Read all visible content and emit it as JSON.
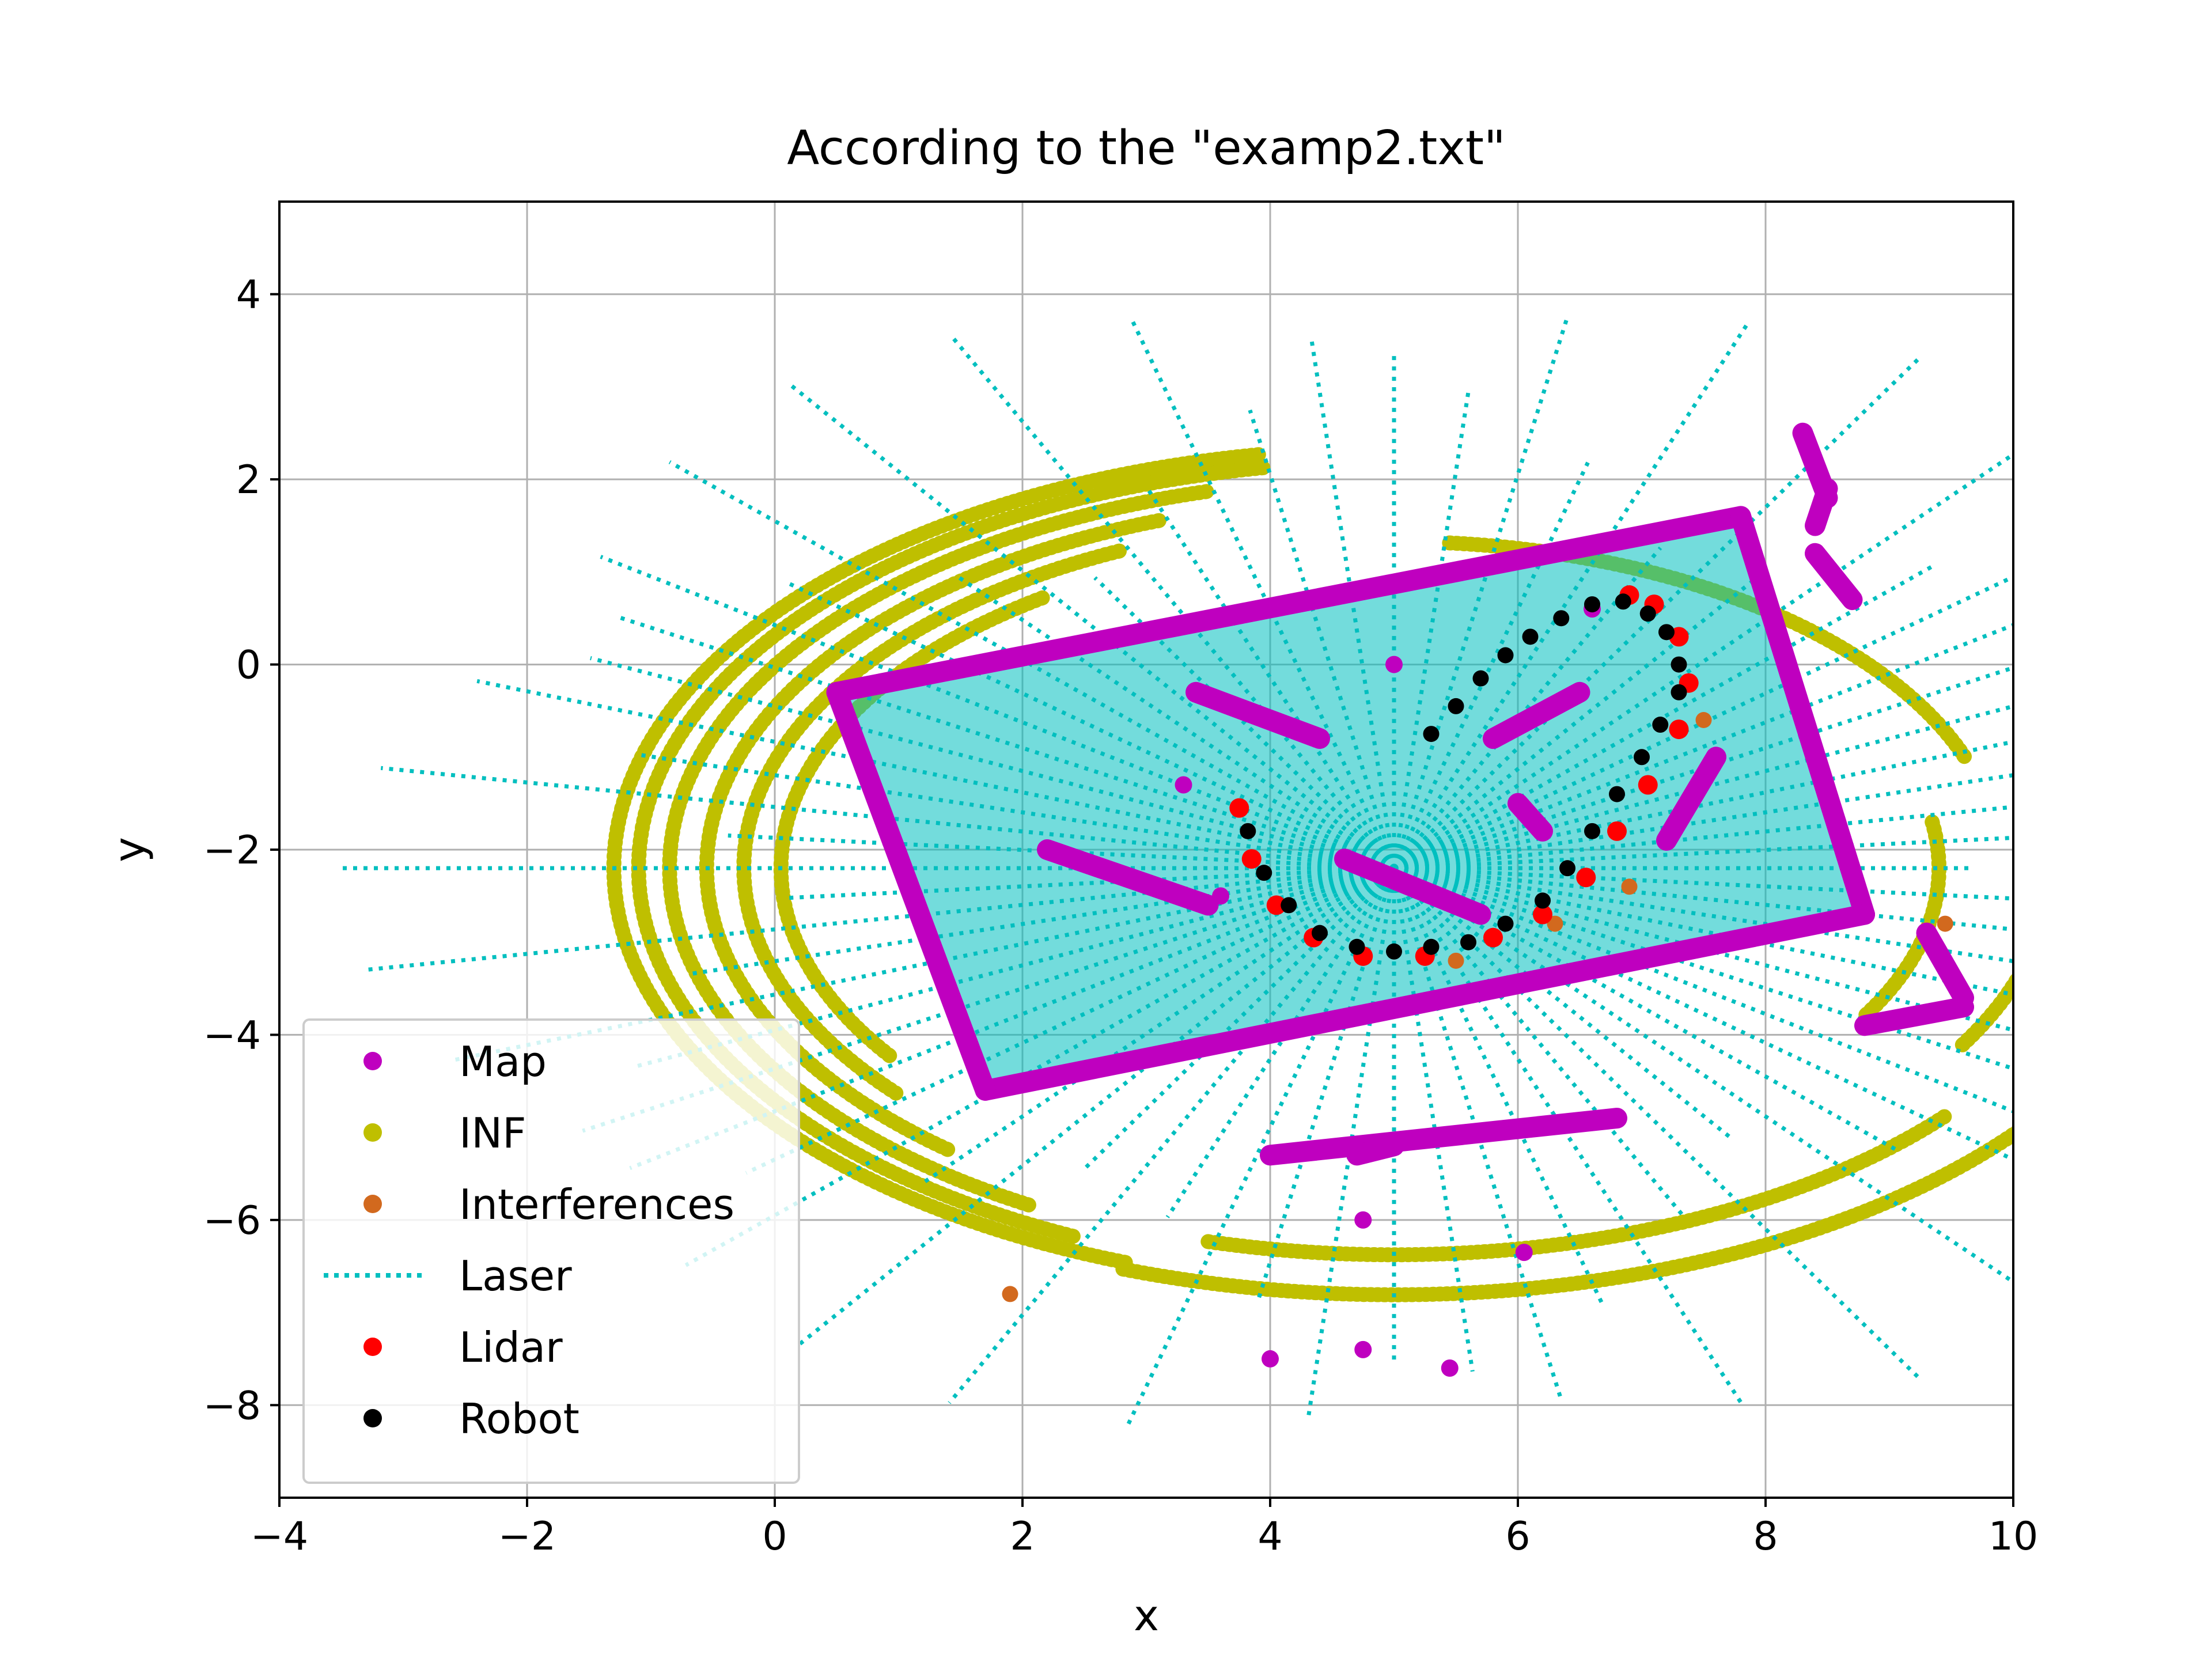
{
  "chart_data": {
    "type": "scatter",
    "title": "According to the \"examp2.txt\"",
    "xlabel": "x",
    "ylabel": "y",
    "xlim": [
      -4,
      10
    ],
    "ylim": [
      -9,
      5
    ],
    "xticks": [
      -4,
      -2,
      0,
      2,
      4,
      6,
      8,
      10
    ],
    "yticks": [
      4,
      2,
      0,
      -2,
      -4,
      -6,
      -8
    ],
    "xtick_labels": [
      "−4",
      "−2",
      "0",
      "2",
      "4",
      "6",
      "8",
      "10"
    ],
    "ytick_labels": [
      "4",
      "2",
      "0",
      "−2",
      "−4",
      "−6",
      "−8"
    ],
    "grid": true,
    "legend_position": "lower-left",
    "legend": [
      {
        "label": "Map",
        "color": "#bf00bf",
        "marker": "dot"
      },
      {
        "label": "INF",
        "color": "#bfbf00",
        "marker": "dot"
      },
      {
        "label": "Interferences",
        "color": "#d2691e",
        "marker": "dot"
      },
      {
        "label": "Laser",
        "color": "#00bfbf",
        "marker": "dotted-line"
      },
      {
        "label": "Lidar",
        "color": "#ff0000",
        "marker": "dot"
      },
      {
        "label": "Robot",
        "color": "#000000",
        "marker": "dot"
      }
    ],
    "series": [
      {
        "name": "Map",
        "color": "#bf00bf",
        "segments": [
          [
            [
              0.5,
              -0.3
            ],
            [
              7.8,
              1.6
            ]
          ],
          [
            [
              7.8,
              1.6
            ],
            [
              8.8,
              -2.7
            ]
          ],
          [
            [
              8.8,
              -2.7
            ],
            [
              1.7,
              -4.6
            ]
          ],
          [
            [
              1.7,
              -4.6
            ],
            [
              0.5,
              -0.3
            ]
          ],
          [
            [
              3.4,
              -0.3
            ],
            [
              4.4,
              -0.8
            ]
          ],
          [
            [
              2.2,
              -2.0
            ],
            [
              3.5,
              -2.6
            ]
          ],
          [
            [
              4.6,
              -2.1
            ],
            [
              5.7,
              -2.7
            ]
          ],
          [
            [
              5.8,
              -0.8
            ],
            [
              6.5,
              -0.3
            ]
          ],
          [
            [
              6.0,
              -1.5
            ],
            [
              6.2,
              -1.8
            ]
          ],
          [
            [
              7.2,
              -1.9
            ],
            [
              7.6,
              -1.0
            ]
          ],
          [
            [
              4.0,
              -5.3
            ],
            [
              6.8,
              -4.9
            ]
          ],
          [
            [
              4.7,
              -5.3
            ],
            [
              5.0,
              -5.2
            ]
          ],
          [
            [
              8.3,
              2.5
            ],
            [
              8.5,
              1.8
            ]
          ],
          [
            [
              8.5,
              1.9
            ],
            [
              8.4,
              1.5
            ]
          ],
          [
            [
              8.4,
              1.2
            ],
            [
              8.7,
              0.7
            ]
          ],
          [
            [
              9.3,
              -2.9
            ],
            [
              9.6,
              -3.6
            ]
          ],
          [
            [
              8.8,
              -3.9
            ],
            [
              9.6,
              -3.7
            ]
          ]
        ],
        "points": [
          [
            3.3,
            -1.3
          ],
          [
            3.6,
            -2.5
          ],
          [
            4.75,
            -6.0
          ],
          [
            6.05,
            -6.35
          ],
          [
            4.0,
            -7.5
          ],
          [
            4.75,
            -7.4
          ],
          [
            5.45,
            -7.6
          ],
          [
            6.6,
            0.6
          ],
          [
            5.0,
            0.0
          ]
        ]
      },
      {
        "name": "Robot",
        "color": "#000000",
        "points": [
          [
            5.3,
            -0.75
          ],
          [
            5.5,
            -0.45
          ],
          [
            5.7,
            -0.15
          ],
          [
            5.9,
            0.1
          ],
          [
            6.1,
            0.3
          ],
          [
            6.35,
            0.5
          ],
          [
            6.6,
            0.65
          ],
          [
            6.85,
            0.68
          ],
          [
            7.05,
            0.55
          ],
          [
            7.2,
            0.35
          ],
          [
            7.3,
            0.0
          ],
          [
            7.3,
            -0.3
          ],
          [
            7.15,
            -0.65
          ],
          [
            7.0,
            -1.0
          ],
          [
            6.8,
            -1.4
          ],
          [
            6.6,
            -1.8
          ],
          [
            6.4,
            -2.2
          ],
          [
            6.2,
            -2.55
          ],
          [
            5.9,
            -2.8
          ],
          [
            5.6,
            -3.0
          ],
          [
            5.3,
            -3.05
          ],
          [
            5.0,
            -3.1
          ],
          [
            4.7,
            -3.05
          ],
          [
            4.4,
            -2.9
          ],
          [
            4.15,
            -2.6
          ],
          [
            3.95,
            -2.25
          ],
          [
            3.82,
            -1.8
          ]
        ]
      },
      {
        "name": "Lidar",
        "color": "#ff0000",
        "points": [
          [
            3.75,
            -1.55
          ],
          [
            3.85,
            -2.1
          ],
          [
            4.05,
            -2.6
          ],
          [
            4.35,
            -2.95
          ],
          [
            4.75,
            -3.15
          ],
          [
            5.25,
            -3.15
          ],
          [
            5.8,
            -2.95
          ],
          [
            6.2,
            -2.7
          ],
          [
            6.55,
            -2.3
          ],
          [
            6.8,
            -1.8
          ],
          [
            7.05,
            -1.3
          ],
          [
            7.3,
            -0.7
          ],
          [
            7.38,
            -0.2
          ],
          [
            7.3,
            0.3
          ],
          [
            7.1,
            0.65
          ],
          [
            6.9,
            0.75
          ]
        ]
      },
      {
        "name": "Interferences",
        "color": "#d2691e",
        "points": [
          [
            1.9,
            -6.8
          ],
          [
            9.45,
            -2.8
          ],
          [
            6.3,
            -2.8
          ],
          [
            7.5,
            -0.6
          ],
          [
            6.9,
            -2.4
          ],
          [
            5.5,
            -3.2
          ]
        ]
      },
      {
        "name": "INF",
        "color": "#bfbf00",
        "arcs": [
          {
            "cx": 5.0,
            "cy": -2.2,
            "r": 6.3,
            "from_deg": 100,
            "to_deg": 250
          },
          {
            "cx": 5.0,
            "cy": -2.2,
            "r": 6.1,
            "from_deg": 100,
            "to_deg": 245
          },
          {
            "cx": 5.0,
            "cy": -2.2,
            "r": 5.85,
            "from_deg": 105,
            "to_deg": 240
          },
          {
            "cx": 5.0,
            "cy": -2.2,
            "r": 5.55,
            "from_deg": 110,
            "to_deg": 230
          },
          {
            "cx": 5.0,
            "cy": -2.2,
            "r": 5.25,
            "from_deg": 115,
            "to_deg": 220
          },
          {
            "cx": 5.0,
            "cy": -2.2,
            "r": 4.95,
            "from_deg": 125,
            "to_deg": 215
          },
          {
            "cx": 5.0,
            "cy": -2.2,
            "r": 6.4,
            "from_deg": 250,
            "to_deg": 330
          },
          {
            "cx": 5.0,
            "cy": -2.2,
            "r": 5.8,
            "from_deg": 255,
            "to_deg": 320
          },
          {
            "cx": 5.0,
            "cy": -2.2,
            "r": 4.9,
            "from_deg": 20,
            "to_deg": 85
          },
          {
            "cx": 5.0,
            "cy": -2.2,
            "r": 4.4,
            "from_deg": -30,
            "to_deg": 10
          },
          {
            "cx": 5.0,
            "cy": -2.2,
            "r": 5.3,
            "from_deg": 330,
            "to_deg": 345
          }
        ]
      },
      {
        "name": "Laser",
        "color": "#00bfbf",
        "origin": [
          5.0,
          -2.2
        ],
        "ray_length": 8.5,
        "ray_count": 72
      }
    ]
  }
}
